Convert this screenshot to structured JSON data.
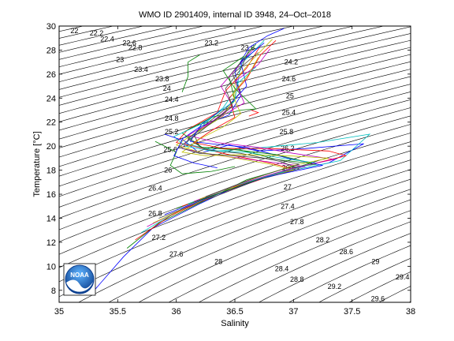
{
  "chart_data": {
    "type": "line",
    "title": "WMO ID 2901409, internal ID 3948, 24–Oct–2018",
    "xlabel": "Salinity",
    "ylabel": "Temperature [°C]",
    "xlim": [
      35,
      38
    ],
    "ylim": [
      7,
      30
    ],
    "xticks": [
      "35",
      "35.5",
      "36",
      "36.5",
      "37",
      "37.5",
      "38"
    ],
    "yticks": [
      "8",
      "10",
      "12",
      "14",
      "16",
      "18",
      "20",
      "22",
      "24",
      "26",
      "28",
      "30"
    ],
    "grid": false,
    "legend": "none",
    "isopycnal_labels": [
      {
        "text": "22",
        "s": 35.13,
        "t": 29.6
      },
      {
        "text": "22.2",
        "s": 35.32,
        "t": 29.4
      },
      {
        "text": "22.4",
        "s": 35.41,
        "t": 28.9
      },
      {
        "text": "22.6",
        "s": 35.6,
        "t": 28.6
      },
      {
        "text": "22.8",
        "s": 35.65,
        "t": 28.2
      },
      {
        "text": "23",
        "s": 35.52,
        "t": 27.2
      },
      {
        "text": "23.2",
        "s": 36.3,
        "t": 28.6
      },
      {
        "text": "23.4",
        "s": 35.7,
        "t": 26.4
      },
      {
        "text": "23.6",
        "s": 36.61,
        "t": 28.2
      },
      {
        "text": "23.8",
        "s": 35.88,
        "t": 25.6
      },
      {
        "text": "24",
        "s": 35.92,
        "t": 24.8
      },
      {
        "text": "24.2",
        "s": 36.98,
        "t": 27.0
      },
      {
        "text": "24.4",
        "s": 35.96,
        "t": 23.9
      },
      {
        "text": "24.6",
        "s": 36.96,
        "t": 25.6
      },
      {
        "text": "24.8",
        "s": 35.96,
        "t": 22.3
      },
      {
        "text": "25",
        "s": 36.97,
        "t": 24.2
      },
      {
        "text": "25.2",
        "s": 35.96,
        "t": 21.2
      },
      {
        "text": "25.4",
        "s": 36.96,
        "t": 22.8
      },
      {
        "text": "25.6",
        "s": 35.95,
        "t": 19.7
      },
      {
        "text": "25.8",
        "s": 36.94,
        "t": 21.2
      },
      {
        "text": "26",
        "s": 35.93,
        "t": 18.0
      },
      {
        "text": "26.2",
        "s": 36.95,
        "t": 19.8
      },
      {
        "text": "26.4",
        "s": 35.82,
        "t": 16.5
      },
      {
        "text": "26.6",
        "s": 36.96,
        "t": 18.2
      },
      {
        "text": "26.8",
        "s": 35.82,
        "t": 14.4
      },
      {
        "text": "27",
        "s": 36.95,
        "t": 16.6
      },
      {
        "text": "27.2",
        "s": 35.85,
        "t": 12.4
      },
      {
        "text": "27.4",
        "s": 36.95,
        "t": 15.0
      },
      {
        "text": "27.6",
        "s": 36.0,
        "t": 11.0
      },
      {
        "text": "27.8",
        "s": 37.03,
        "t": 13.7
      },
      {
        "text": "28",
        "s": 36.36,
        "t": 10.4
      },
      {
        "text": "28.2",
        "s": 37.25,
        "t": 12.2
      },
      {
        "text": "28.4",
        "s": 36.9,
        "t": 9.8
      },
      {
        "text": "28.6",
        "s": 37.45,
        "t": 11.2
      },
      {
        "text": "28.8",
        "s": 37.03,
        "t": 8.9
      },
      {
        "text": "29",
        "s": 37.7,
        "t": 10.4
      },
      {
        "text": "29.2",
        "s": 37.35,
        "t": 8.3
      },
      {
        "text": "29.4",
        "s": 37.93,
        "t": 9.1
      },
      {
        "text": "29.6",
        "s": 37.72,
        "t": 7.3
      }
    ],
    "series": [
      {
        "color": "#0000ff",
        "points": [
          [
            35.3,
            8.0
          ],
          [
            35.55,
            10.8
          ],
          [
            35.8,
            13.2
          ],
          [
            36.2,
            15.2
          ],
          [
            36.55,
            16.8
          ],
          [
            36.9,
            17.8
          ],
          [
            37.3,
            18.6
          ],
          [
            37.6,
            20.2
          ],
          [
            37.1,
            19.8
          ],
          [
            36.7,
            19.6
          ],
          [
            36.45,
            20.1
          ],
          [
            36.2,
            19.4
          ],
          [
            36.05,
            20.6
          ],
          [
            36.2,
            21.6
          ],
          [
            36.45,
            22.6
          ],
          [
            36.55,
            24.2
          ],
          [
            36.5,
            26.2
          ],
          [
            36.62,
            28.2
          ],
          [
            36.78,
            29.2
          ],
          [
            36.92,
            29.8
          ]
        ]
      },
      {
        "color": "#008000",
        "points": [
          [
            35.58,
            11.5
          ],
          [
            35.85,
            13.6
          ],
          [
            36.25,
            15.5
          ],
          [
            36.6,
            17.2
          ],
          [
            36.95,
            18.2
          ],
          [
            37.2,
            18.5
          ],
          [
            36.85,
            18.9
          ],
          [
            36.5,
            19.8
          ],
          [
            36.2,
            19.9
          ],
          [
            36.15,
            21.0
          ],
          [
            36.35,
            22.2
          ],
          [
            36.5,
            23.8
          ],
          [
            36.45,
            25.8
          ],
          [
            36.6,
            27.6
          ],
          [
            36.68,
            28.5
          ]
        ]
      },
      {
        "color": "#ff0000",
        "points": [
          [
            35.65,
            12.2
          ],
          [
            35.95,
            14.2
          ],
          [
            36.35,
            16.0
          ],
          [
            36.8,
            17.5
          ],
          [
            37.0,
            18.1
          ],
          [
            36.8,
            18.6
          ],
          [
            36.4,
            19.4
          ],
          [
            36.15,
            20.0
          ],
          [
            36.0,
            20.3
          ],
          [
            36.1,
            21.4
          ],
          [
            36.35,
            22.8
          ],
          [
            36.42,
            24.6
          ],
          [
            36.6,
            26.5
          ],
          [
            36.72,
            28.4
          ]
        ]
      },
      {
        "color": "#00bfbf",
        "points": [
          [
            35.7,
            12.8
          ],
          [
            36.05,
            14.8
          ],
          [
            36.45,
            16.4
          ],
          [
            36.85,
            17.7
          ],
          [
            37.4,
            18.8
          ],
          [
            37.65,
            21.0
          ],
          [
            37.2,
            20.3
          ],
          [
            36.75,
            19.9
          ],
          [
            36.35,
            19.6
          ],
          [
            36.08,
            20.2
          ],
          [
            36.2,
            21.5
          ],
          [
            36.4,
            23.2
          ],
          [
            36.52,
            24.9
          ],
          [
            36.55,
            26.8
          ],
          [
            36.75,
            28.8
          ]
        ]
      },
      {
        "color": "#bf00bf",
        "points": [
          [
            35.75,
            13.3
          ],
          [
            36.1,
            15.0
          ],
          [
            36.5,
            16.6
          ],
          [
            36.9,
            17.9
          ],
          [
            37.1,
            18.3
          ],
          [
            36.7,
            18.8
          ],
          [
            36.3,
            19.3
          ],
          [
            36.05,
            19.8
          ],
          [
            36.12,
            20.8
          ],
          [
            36.3,
            22.0
          ],
          [
            36.48,
            23.4
          ],
          [
            36.38,
            25.0
          ],
          [
            36.55,
            26.9
          ],
          [
            36.65,
            28.0
          ]
        ]
      },
      {
        "color": "#bfbf00",
        "points": [
          [
            35.8,
            13.6
          ],
          [
            36.2,
            15.4
          ],
          [
            36.6,
            17.0
          ],
          [
            37.0,
            18.0
          ],
          [
            36.8,
            18.5
          ],
          [
            36.45,
            19.1
          ],
          [
            36.2,
            19.5
          ],
          [
            36.0,
            20.1
          ],
          [
            36.18,
            21.2
          ],
          [
            36.4,
            22.5
          ],
          [
            36.5,
            24.0
          ],
          [
            36.5,
            25.5
          ],
          [
            36.65,
            27.2
          ],
          [
            36.82,
            28.9
          ]
        ]
      },
      {
        "color": "#404040",
        "points": [
          [
            35.85,
            14.0
          ],
          [
            36.3,
            15.7
          ],
          [
            36.7,
            17.2
          ],
          [
            37.05,
            18.1
          ],
          [
            36.9,
            18.7
          ],
          [
            36.55,
            19.4
          ],
          [
            36.25,
            19.7
          ],
          [
            36.1,
            20.6
          ],
          [
            36.25,
            21.8
          ],
          [
            36.42,
            23.1
          ],
          [
            36.55,
            24.5
          ],
          [
            36.48,
            26.0
          ],
          [
            36.7,
            27.8
          ]
        ]
      },
      {
        "color": "#0000ff",
        "points": [
          [
            35.9,
            14.3
          ],
          [
            36.35,
            16.0
          ],
          [
            36.75,
            17.4
          ],
          [
            37.25,
            18.4
          ],
          [
            36.95,
            19.0
          ],
          [
            36.6,
            19.9
          ],
          [
            36.3,
            20.2
          ],
          [
            36.12,
            20.4
          ],
          [
            36.22,
            21.9
          ],
          [
            36.46,
            23.5
          ],
          [
            36.6,
            25.0
          ],
          [
            36.55,
            27.0
          ],
          [
            36.75,
            28.6
          ]
        ]
      },
      {
        "color": "#008000",
        "points": [
          [
            36.0,
            14.8
          ],
          [
            36.4,
            16.2
          ],
          [
            36.8,
            17.6
          ],
          [
            37.15,
            18.6
          ],
          [
            36.85,
            19.3
          ],
          [
            36.5,
            19.7
          ],
          [
            36.22,
            19.9
          ],
          [
            36.05,
            21.1
          ],
          [
            36.3,
            22.4
          ],
          [
            36.55,
            23.0
          ],
          [
            36.68,
            23.1
          ],
          [
            36.5,
            24.8
          ],
          [
            36.4,
            26.3
          ],
          [
            36.58,
            27.5
          ]
        ]
      },
      {
        "color": "#ff0000",
        "points": [
          [
            36.05,
            15.0
          ],
          [
            36.45,
            16.5
          ],
          [
            36.9,
            17.9
          ],
          [
            37.45,
            19.2
          ],
          [
            37.3,
            19.6
          ],
          [
            36.8,
            19.8
          ],
          [
            36.4,
            19.8
          ],
          [
            36.15,
            20.3
          ],
          [
            36.3,
            21.3
          ],
          [
            36.5,
            22.4
          ],
          [
            36.45,
            24.0
          ],
          [
            36.6,
            25.6
          ],
          [
            36.72,
            27.6
          ],
          [
            36.85,
            28.8
          ]
        ]
      },
      {
        "color": "#00bfbf",
        "points": [
          [
            36.1,
            15.2
          ],
          [
            36.5,
            16.7
          ],
          [
            36.95,
            18.0
          ],
          [
            37.2,
            18.6
          ],
          [
            36.9,
            19.0
          ],
          [
            36.6,
            19.5
          ],
          [
            36.3,
            19.6
          ],
          [
            36.08,
            20.0
          ],
          [
            35.98,
            20.8
          ],
          [
            36.25,
            22.0
          ],
          [
            36.5,
            23.8
          ],
          [
            36.52,
            25.2
          ],
          [
            36.68,
            26.6
          ]
        ]
      },
      {
        "color": "#bf00bf",
        "points": [
          [
            36.15,
            15.4
          ],
          [
            36.55,
            16.9
          ],
          [
            37.0,
            18.2
          ],
          [
            37.35,
            18.9
          ],
          [
            37.0,
            19.4
          ],
          [
            36.7,
            19.9
          ],
          [
            36.35,
            20.3
          ],
          [
            36.1,
            20.9
          ],
          [
            36.35,
            22.3
          ],
          [
            36.58,
            23.6
          ],
          [
            36.5,
            25.4
          ],
          [
            36.7,
            26.8
          ],
          [
            36.8,
            28.1
          ]
        ]
      },
      {
        "color": "#bfbf00",
        "points": [
          [
            36.2,
            15.6
          ],
          [
            36.6,
            17.1
          ],
          [
            37.0,
            18.4
          ],
          [
            37.3,
            19.0
          ],
          [
            36.95,
            19.2
          ],
          [
            36.55,
            19.3
          ],
          [
            36.25,
            19.2
          ],
          [
            36.05,
            19.5
          ],
          [
            36.2,
            20.6
          ],
          [
            36.4,
            21.6
          ],
          [
            36.55,
            22.7
          ],
          [
            36.48,
            24.3
          ],
          [
            36.62,
            26.0
          ],
          [
            36.7,
            27.4
          ]
        ]
      },
      {
        "color": "#404040",
        "points": [
          [
            36.25,
            15.8
          ],
          [
            36.65,
            17.3
          ],
          [
            37.05,
            18.5
          ],
          [
            36.85,
            18.9
          ],
          [
            36.5,
            19.2
          ],
          [
            36.2,
            19.4
          ],
          [
            36.02,
            19.9
          ],
          [
            36.15,
            20.8
          ],
          [
            36.32,
            22.1
          ],
          [
            36.48,
            23.3
          ],
          [
            36.42,
            24.8
          ],
          [
            36.55,
            26.4
          ],
          [
            36.62,
            28.0
          ]
        ]
      },
      {
        "color": "#008000",
        "points": [
          [
            35.82,
            20.4
          ],
          [
            36.0,
            19.5
          ],
          [
            35.95,
            18.4
          ],
          [
            36.05,
            17.7
          ],
          [
            36.3,
            17.9
          ],
          [
            36.5,
            18.3
          ]
        ]
      },
      {
        "color": "#0000ff",
        "points": [
          [
            35.9,
            21.0
          ],
          [
            36.05,
            20.5
          ],
          [
            35.98,
            19.2
          ],
          [
            36.15,
            18.6
          ],
          [
            36.35,
            18.2
          ]
        ]
      },
      {
        "color": "#008000",
        "points": [
          [
            36.05,
            24.5
          ],
          [
            36.1,
            25.8
          ],
          [
            36.1,
            27.0
          ],
          [
            36.2,
            27.6
          ]
        ]
      },
      {
        "color": "#ff0000",
        "points": [
          [
            36.62,
            22.5
          ],
          [
            36.7,
            22.8
          ],
          [
            36.64,
            23.0
          ]
        ]
      }
    ]
  },
  "logo": {
    "text": "NOAA"
  }
}
